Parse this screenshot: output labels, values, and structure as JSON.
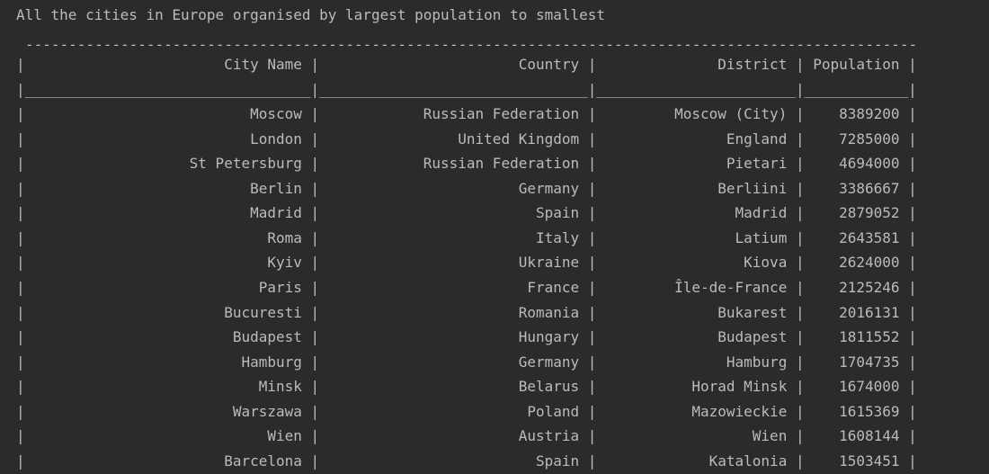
{
  "console": {
    "heading": "All the cities in Europe organised by largest population to smallest",
    "columns": [
      "City Name",
      "Country",
      "District",
      "Population"
    ],
    "rows": [
      [
        "Moscow",
        "Russian Federation",
        "Moscow (City)",
        "8389200"
      ],
      [
        "London",
        "United Kingdom",
        "England",
        "7285000"
      ],
      [
        "St Petersburg",
        "Russian Federation",
        "Pietari",
        "4694000"
      ],
      [
        "Berlin",
        "Germany",
        "Berliini",
        "3386667"
      ],
      [
        "Madrid",
        "Spain",
        "Madrid",
        "2879052"
      ],
      [
        "Roma",
        "Italy",
        "Latium",
        "2643581"
      ],
      [
        "Kyiv",
        "Ukraine",
        "Kiova",
        "2624000"
      ],
      [
        "Paris",
        "France",
        "Île-de-France",
        "2125246"
      ],
      [
        "Bucuresti",
        "Romania",
        "Bukarest",
        "2016131"
      ],
      [
        "Budapest",
        "Hungary",
        "Budapest",
        "1811552"
      ],
      [
        "Hamburg",
        "Germany",
        "Hamburg",
        "1704735"
      ],
      [
        "Minsk",
        "Belarus",
        "Horad Minsk",
        "1674000"
      ],
      [
        "Warszawa",
        "Poland",
        "Mazowieckie",
        "1615369"
      ],
      [
        "Wien",
        "Austria",
        "Wien",
        "1608144"
      ],
      [
        "Barcelona",
        "Spain",
        "Katalonia",
        "1503451"
      ]
    ]
  }
}
